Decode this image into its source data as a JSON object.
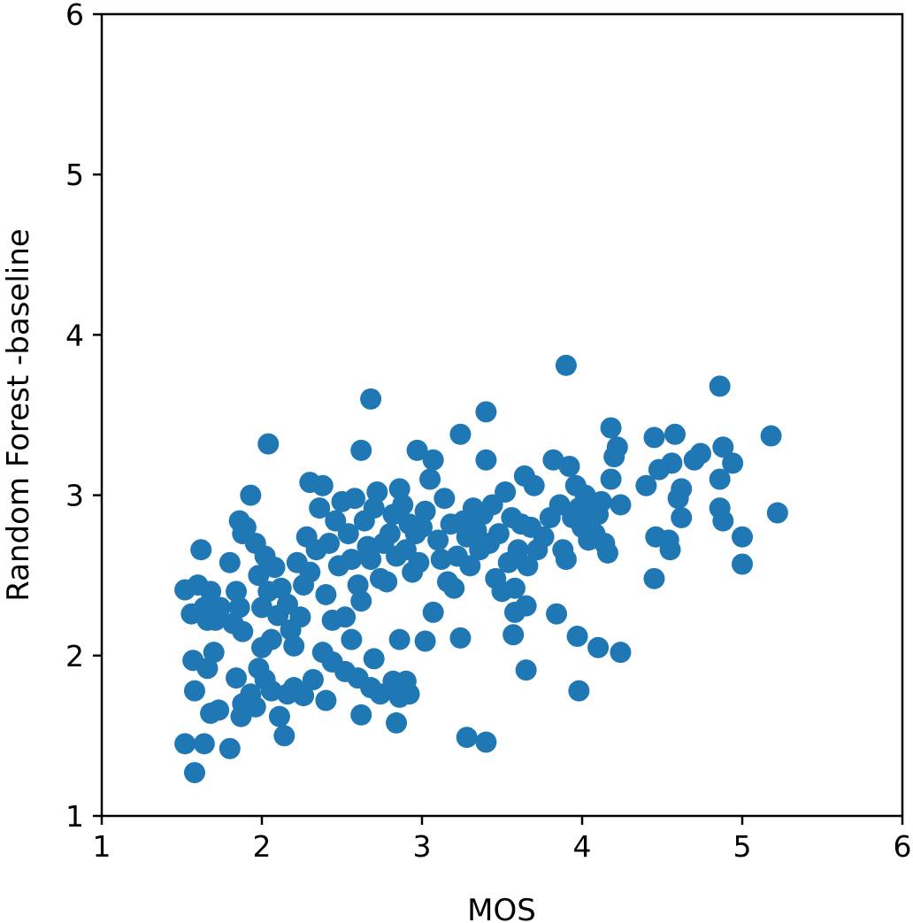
{
  "chart_data": {
    "type": "scatter",
    "xlabel": "MOS",
    "ylabel": "Random Forest -baseline",
    "xlim": [
      1,
      6
    ],
    "ylim": [
      1,
      6
    ],
    "xticks": [
      "1",
      "2",
      "3",
      "4",
      "5",
      "6"
    ],
    "yticks": [
      "1",
      "2",
      "3",
      "4",
      "5",
      "6"
    ],
    "grid": false,
    "color": "#1f77b4",
    "series": [
      {
        "points": [
          [
            1.52,
            1.45
          ],
          [
            1.58,
            1.27
          ],
          [
            1.64,
            1.45
          ],
          [
            1.8,
            1.42
          ],
          [
            1.57,
            1.97
          ],
          [
            1.58,
            1.78
          ],
          [
            1.66,
            1.92
          ],
          [
            1.7,
            2.02
          ],
          [
            1.68,
            1.64
          ],
          [
            1.73,
            1.66
          ],
          [
            1.84,
            1.86
          ],
          [
            1.88,
            1.7
          ],
          [
            1.87,
            1.62
          ],
          [
            1.93,
            1.76
          ],
          [
            1.96,
            1.68
          ],
          [
            1.98,
            1.92
          ],
          [
            2.02,
            1.85
          ],
          [
            2.0,
            2.05
          ],
          [
            2.06,
            1.78
          ],
          [
            2.11,
            1.62
          ],
          [
            2.14,
            1.5
          ],
          [
            2.16,
            1.76
          ],
          [
            2.2,
            1.8
          ],
          [
            2.26,
            1.75
          ],
          [
            2.32,
            1.85
          ],
          [
            2.4,
            1.72
          ],
          [
            2.38,
            2.02
          ],
          [
            2.44,
            1.96
          ],
          [
            2.52,
            1.9
          ],
          [
            2.56,
            2.1
          ],
          [
            2.6,
            1.86
          ],
          [
            2.68,
            1.8
          ],
          [
            2.7,
            1.98
          ],
          [
            2.62,
            1.63
          ],
          [
            2.74,
            1.76
          ],
          [
            2.82,
            1.84
          ],
          [
            2.86,
            1.74
          ],
          [
            2.9,
            1.84
          ],
          [
            2.92,
            1.76
          ],
          [
            2.84,
            1.58
          ],
          [
            2.86,
            2.1
          ],
          [
            3.02,
            2.09
          ],
          [
            3.28,
            1.49
          ],
          [
            3.4,
            1.46
          ],
          [
            3.24,
            2.11
          ],
          [
            3.07,
            2.27
          ],
          [
            3.65,
            1.91
          ],
          [
            3.98,
            1.78
          ],
          [
            3.97,
            2.12
          ],
          [
            4.1,
            2.05
          ],
          [
            4.24,
            2.02
          ],
          [
            3.84,
            2.26
          ],
          [
            3.57,
            2.13
          ],
          [
            3.58,
            2.27
          ],
          [
            3.65,
            2.31
          ],
          [
            4.45,
            2.48
          ],
          [
            1.52,
            2.41
          ],
          [
            1.56,
            2.26
          ],
          [
            1.6,
            2.44
          ],
          [
            1.64,
            2.3
          ],
          [
            1.66,
            2.22
          ],
          [
            1.68,
            2.4
          ],
          [
            1.71,
            2.22
          ],
          [
            1.74,
            2.3
          ],
          [
            1.62,
            2.66
          ],
          [
            1.8,
            2.58
          ],
          [
            1.84,
            2.4
          ],
          [
            1.86,
            2.3
          ],
          [
            1.88,
            2.15
          ],
          [
            1.82,
            2.2
          ],
          [
            1.86,
            2.84
          ],
          [
            1.88,
            2.76
          ],
          [
            1.9,
            2.8
          ],
          [
            1.93,
            3.0
          ],
          [
            1.96,
            2.7
          ],
          [
            1.98,
            2.5
          ],
          [
            2.0,
            2.3
          ],
          [
            2.02,
            2.62
          ],
          [
            2.04,
            2.4
          ],
          [
            2.06,
            2.1
          ],
          [
            2.08,
            2.55
          ],
          [
            2.1,
            2.25
          ],
          [
            2.12,
            2.42
          ],
          [
            2.16,
            2.32
          ],
          [
            2.18,
            2.16
          ],
          [
            2.2,
            2.06
          ],
          [
            2.22,
            2.58
          ],
          [
            2.24,
            2.24
          ],
          [
            2.26,
            2.44
          ],
          [
            2.28,
            2.74
          ],
          [
            2.3,
            2.52
          ],
          [
            2.3,
            3.08
          ],
          [
            2.34,
            2.66
          ],
          [
            2.36,
            2.92
          ],
          [
            2.38,
            3.06
          ],
          [
            2.4,
            2.38
          ],
          [
            2.42,
            2.7
          ],
          [
            2.44,
            2.22
          ],
          [
            2.46,
            2.84
          ],
          [
            2.48,
            2.56
          ],
          [
            2.5,
            2.96
          ],
          [
            2.52,
            2.24
          ],
          [
            2.54,
            2.76
          ],
          [
            2.56,
            2.6
          ],
          [
            2.58,
            2.98
          ],
          [
            2.6,
            2.44
          ],
          [
            2.62,
            2.34
          ],
          [
            2.64,
            2.84
          ],
          [
            2.66,
            2.68
          ],
          [
            2.68,
            2.6
          ],
          [
            2.7,
            2.92
          ],
          [
            2.72,
            3.02
          ],
          [
            2.74,
            2.48
          ],
          [
            2.76,
            2.7
          ],
          [
            2.78,
            2.46
          ],
          [
            2.8,
            2.76
          ],
          [
            2.82,
            2.88
          ],
          [
            2.84,
            2.62
          ],
          [
            2.86,
            3.04
          ],
          [
            2.88,
            2.94
          ],
          [
            2.9,
            2.66
          ],
          [
            2.92,
            2.82
          ],
          [
            2.94,
            2.52
          ],
          [
            2.96,
            2.76
          ],
          [
            2.98,
            2.58
          ],
          [
            3.0,
            2.8
          ],
          [
            2.04,
            3.32
          ],
          [
            2.62,
            3.28
          ],
          [
            2.68,
            3.6
          ],
          [
            2.97,
            3.28
          ],
          [
            3.02,
            2.9
          ],
          [
            3.05,
            3.1
          ],
          [
            3.07,
            3.22
          ],
          [
            3.1,
            2.72
          ],
          [
            3.12,
            2.6
          ],
          [
            3.14,
            2.98
          ],
          [
            3.16,
            2.46
          ],
          [
            3.18,
            2.82
          ],
          [
            3.2,
            2.42
          ],
          [
            3.22,
            2.62
          ],
          [
            3.24,
            3.38
          ],
          [
            3.26,
            2.84
          ],
          [
            3.28,
            2.74
          ],
          [
            3.3,
            2.56
          ],
          [
            3.32,
            2.92
          ],
          [
            3.34,
            2.78
          ],
          [
            3.36,
            2.66
          ],
          [
            3.38,
            2.88
          ],
          [
            3.4,
            3.52
          ],
          [
            3.4,
            3.22
          ],
          [
            3.42,
            2.7
          ],
          [
            3.44,
            2.94
          ],
          [
            3.46,
            2.48
          ],
          [
            3.48,
            2.76
          ],
          [
            3.5,
            2.4
          ],
          [
            3.52,
            3.02
          ],
          [
            3.54,
            2.58
          ],
          [
            3.56,
            2.86
          ],
          [
            3.58,
            2.42
          ],
          [
            3.6,
            2.66
          ],
          [
            3.62,
            2.82
          ],
          [
            3.64,
            3.12
          ],
          [
            3.66,
            2.56
          ],
          [
            3.68,
            2.8
          ],
          [
            3.7,
            3.06
          ],
          [
            3.72,
            2.66
          ],
          [
            3.76,
            2.74
          ],
          [
            3.8,
            2.86
          ],
          [
            3.82,
            3.22
          ],
          [
            3.86,
            2.94
          ],
          [
            3.88,
            2.66
          ],
          [
            3.9,
            2.6
          ],
          [
            3.9,
            3.81
          ],
          [
            3.92,
            3.18
          ],
          [
            3.94,
            2.86
          ],
          [
            3.96,
            3.06
          ],
          [
            3.98,
            2.92
          ],
          [
            4.0,
            2.8
          ],
          [
            4.02,
            3.0
          ],
          [
            4.04,
            2.72
          ],
          [
            4.06,
            2.9
          ],
          [
            4.08,
            2.76
          ],
          [
            4.1,
            2.88
          ],
          [
            4.12,
            2.96
          ],
          [
            4.14,
            2.7
          ],
          [
            4.16,
            2.64
          ],
          [
            4.18,
            3.1
          ],
          [
            4.18,
            3.42
          ],
          [
            4.2,
            3.24
          ],
          [
            4.22,
            3.3
          ],
          [
            4.24,
            2.94
          ],
          [
            4.4,
            3.06
          ],
          [
            4.45,
            3.36
          ],
          [
            4.48,
            3.16
          ],
          [
            4.46,
            2.74
          ],
          [
            4.55,
            2.66
          ],
          [
            4.54,
            2.72
          ],
          [
            4.56,
            3.2
          ],
          [
            4.58,
            3.38
          ],
          [
            4.6,
            2.98
          ],
          [
            4.62,
            3.04
          ],
          [
            4.62,
            2.86
          ],
          [
            4.7,
            3.22
          ],
          [
            4.74,
            3.26
          ],
          [
            4.86,
            3.68
          ],
          [
            4.86,
            3.1
          ],
          [
            4.88,
            3.3
          ],
          [
            4.86,
            2.92
          ],
          [
            4.88,
            2.84
          ],
          [
            4.94,
            3.2
          ],
          [
            5.0,
            2.74
          ],
          [
            5.0,
            2.57
          ],
          [
            5.18,
            3.37
          ],
          [
            5.22,
            2.89
          ]
        ]
      }
    ]
  }
}
